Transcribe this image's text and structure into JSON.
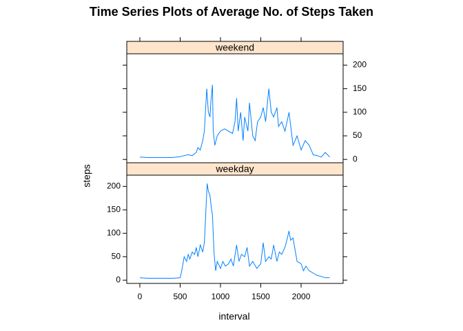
{
  "chart_data": {
    "type": "line",
    "title": "Time Series Plots of Average No. of Steps Taken",
    "x_label": "interval",
    "y_label": "steps",
    "xlim": [
      -162,
      2521
    ],
    "xticks": [
      0,
      500,
      1000,
      1500,
      2000
    ],
    "panels": [
      {
        "strip": "weekend",
        "color": "#0080ff",
        "strip_color": "#ffe5cc",
        "ylim": [
          -7,
          224
        ],
        "yticks": [
          0,
          50,
          100,
          150,
          200
        ],
        "x": [
          0,
          100,
          200,
          300,
          400,
          500,
          550,
          600,
          650,
          700,
          720,
          750,
          780,
          800,
          820,
          830,
          850,
          870,
          880,
          900,
          910,
          930,
          960,
          1000,
          1050,
          1100,
          1150,
          1180,
          1200,
          1220,
          1250,
          1280,
          1300,
          1340,
          1360,
          1400,
          1430,
          1460,
          1500,
          1530,
          1560,
          1600,
          1630,
          1660,
          1700,
          1720,
          1760,
          1800,
          1850,
          1900,
          1950,
          2000,
          2050,
          2100,
          2150,
          2200,
          2250,
          2300,
          2355
        ],
        "values": [
          5,
          4,
          4,
          4,
          4,
          6,
          8,
          10,
          8,
          15,
          25,
          20,
          40,
          60,
          120,
          150,
          100,
          90,
          120,
          158,
          60,
          30,
          50,
          60,
          65,
          60,
          55,
          80,
          130,
          60,
          100,
          40,
          90,
          60,
          120,
          50,
          40,
          80,
          90,
          110,
          80,
          150,
          100,
          90,
          110,
          70,
          80,
          60,
          100,
          30,
          50,
          20,
          40,
          30,
          10,
          8,
          5,
          15,
          5
        ]
      },
      {
        "strip": "weekday",
        "color": "#0080ff",
        "strip_color": "#ffe5cc",
        "ylim": [
          -7,
          224
        ],
        "yticks": [
          0,
          50,
          100,
          150,
          200
        ],
        "x": [
          0,
          100,
          200,
          300,
          400,
          500,
          520,
          550,
          580,
          600,
          620,
          650,
          680,
          700,
          720,
          750,
          780,
          800,
          820,
          835,
          850,
          870,
          890,
          900,
          920,
          940,
          960,
          1000,
          1030,
          1060,
          1100,
          1130,
          1160,
          1200,
          1230,
          1260,
          1300,
          1330,
          1360,
          1400,
          1450,
          1500,
          1530,
          1560,
          1600,
          1630,
          1660,
          1700,
          1730,
          1760,
          1800,
          1830,
          1850,
          1870,
          1900,
          1930,
          1950,
          2000,
          2030,
          2060,
          2100,
          2150,
          2200,
          2250,
          2300,
          2355
        ],
        "values": [
          5,
          4,
          4,
          4,
          4,
          5,
          20,
          50,
          40,
          55,
          45,
          60,
          55,
          70,
          50,
          75,
          60,
          80,
          150,
          206,
          190,
          180,
          150,
          140,
          60,
          20,
          40,
          25,
          40,
          30,
          35,
          45,
          30,
          75,
          40,
          55,
          50,
          70,
          30,
          40,
          25,
          35,
          80,
          40,
          50,
          45,
          75,
          40,
          60,
          55,
          70,
          90,
          105,
          85,
          90,
          60,
          40,
          35,
          20,
          30,
          20,
          15,
          10,
          8,
          5,
          5
        ]
      }
    ]
  }
}
